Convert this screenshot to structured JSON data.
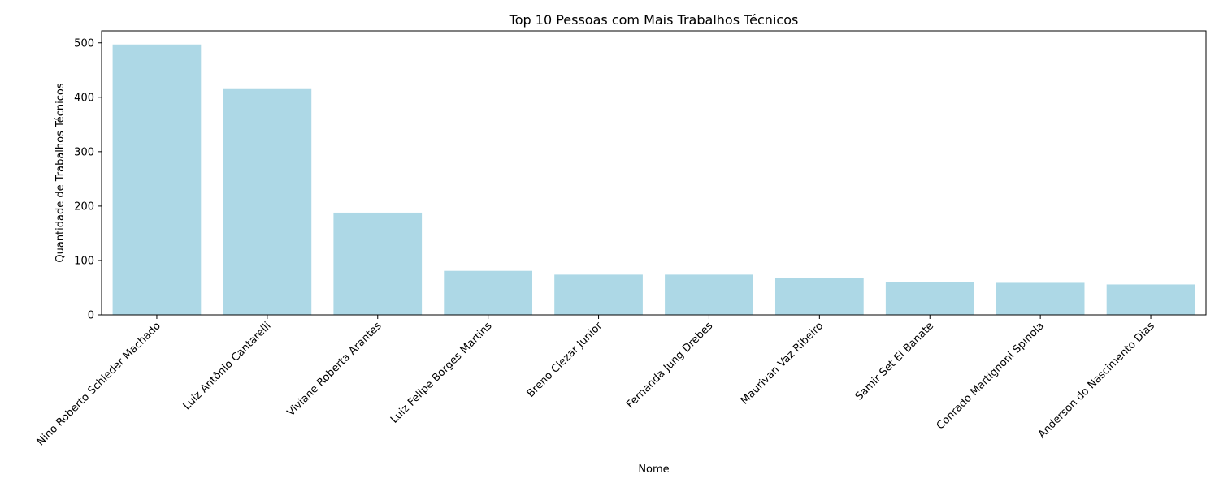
{
  "chart_data": {
    "type": "bar",
    "title": "Top 10 Pessoas com Mais Trabalhos Técnicos",
    "xlabel": "Nome",
    "ylabel": "Quantidade de Trabalhos Técnicos",
    "categories": [
      "Nino Roberto Schleder Machado",
      "Luiz Antônio Cantarelli",
      "Viviane Roberta Arantes",
      "Luiz Felipe Borges Martins",
      "Breno Clezar Junior",
      "Fernanda Jung Drebes",
      "Maurivan Vaz Ribeiro",
      "Samir Set El Banate",
      "Conrado Martignoni Spinola",
      "Anderson do Nascimento Dias"
    ],
    "values": [
      497,
      415,
      188,
      81,
      74,
      74,
      68,
      61,
      59,
      56
    ],
    "ylim": [
      0,
      522
    ],
    "yticks": [
      0,
      100,
      200,
      300,
      400,
      500
    ],
    "grid": false,
    "legend": "none",
    "bar_color": "#add8e6"
  }
}
